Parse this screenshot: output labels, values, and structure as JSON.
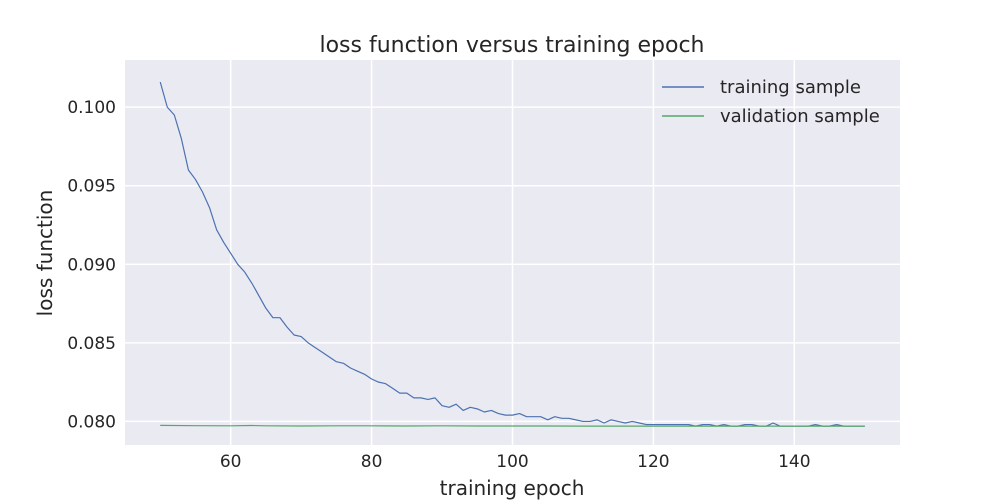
{
  "chart_data": {
    "type": "line",
    "title": "loss function versus training epoch",
    "xlabel": "training epoch",
    "ylabel": "loss function",
    "xlim": [
      45,
      155
    ],
    "ylim": [
      0.0785,
      0.103
    ],
    "xticks": [
      60,
      80,
      100,
      120,
      140
    ],
    "xtick_labels": [
      "60",
      "80",
      "100",
      "120",
      "140"
    ],
    "yticks": [
      0.08,
      0.085,
      0.09,
      0.095,
      0.1
    ],
    "ytick_labels": [
      "0.080",
      "0.085",
      "0.090",
      "0.095",
      "0.100"
    ],
    "grid": true,
    "legend_position": "upper-right",
    "series": [
      {
        "name": "training sample",
        "color": "#4c72b0",
        "x": [
          50,
          51,
          52,
          53,
          54,
          55,
          56,
          57,
          58,
          59,
          60,
          61,
          62,
          63,
          64,
          65,
          66,
          67,
          68,
          69,
          70,
          71,
          72,
          73,
          74,
          75,
          76,
          77,
          78,
          79,
          80,
          81,
          82,
          83,
          84,
          85,
          86,
          87,
          88,
          89,
          90,
          91,
          92,
          93,
          94,
          95,
          96,
          97,
          98,
          99,
          100,
          101,
          102,
          103,
          104,
          105,
          106,
          107,
          108,
          109,
          110,
          111,
          112,
          113,
          114,
          115,
          116,
          117,
          118,
          119,
          120,
          121,
          122,
          123,
          124,
          125,
          126,
          127,
          128,
          129,
          130,
          131,
          132,
          133,
          134,
          135,
          136,
          137,
          138,
          139,
          140,
          141,
          142,
          143,
          144,
          145,
          146,
          147,
          148,
          149,
          150
        ],
        "y": [
          0.1016,
          0.1,
          0.0995,
          0.098,
          0.096,
          0.0954,
          0.0946,
          0.0936,
          0.0922,
          0.0914,
          0.0907,
          0.09,
          0.0895,
          0.0888,
          0.088,
          0.0872,
          0.0866,
          0.0866,
          0.086,
          0.0855,
          0.0854,
          0.085,
          0.0847,
          0.0844,
          0.0841,
          0.0838,
          0.0837,
          0.0834,
          0.0832,
          0.083,
          0.0827,
          0.0825,
          0.0824,
          0.0821,
          0.0818,
          0.0818,
          0.0815,
          0.0815,
          0.0814,
          0.0815,
          0.081,
          0.0809,
          0.0811,
          0.0807,
          0.0809,
          0.0808,
          0.0806,
          0.0807,
          0.0805,
          0.0804,
          0.0804,
          0.0805,
          0.0803,
          0.0803,
          0.0803,
          0.0801,
          0.0803,
          0.0802,
          0.0802,
          0.0801,
          0.08,
          0.08,
          0.0801,
          0.0799,
          0.0801,
          0.08,
          0.0799,
          0.08,
          0.0799,
          0.0798,
          0.0798,
          0.0798,
          0.0798,
          0.0798,
          0.0798,
          0.0798,
          0.0797,
          0.0798,
          0.0798,
          0.0797,
          0.0798,
          0.0797,
          0.0797,
          0.0798,
          0.0798,
          0.0797,
          0.0797,
          0.0799,
          0.0797,
          0.0797,
          0.0797,
          0.0797,
          0.0797,
          0.0798,
          0.0797,
          0.0797,
          0.0798,
          0.0797,
          0.0797,
          0.0797,
          0.0797
        ]
      },
      {
        "name": "validation sample",
        "color": "#55a868",
        "x": [
          50,
          55,
          60,
          63,
          65,
          70,
          75,
          80,
          85,
          90,
          95,
          100,
          105,
          110,
          115,
          120,
          125,
          130,
          135,
          140,
          145,
          150
        ],
        "y": [
          0.07975,
          0.07973,
          0.07972,
          0.07974,
          0.07972,
          0.07971,
          0.07972,
          0.07972,
          0.07971,
          0.07972,
          0.07971,
          0.07971,
          0.07971,
          0.0797,
          0.0797,
          0.0797,
          0.0797,
          0.0797,
          0.0797,
          0.0797,
          0.0797,
          0.0797
        ]
      }
    ]
  }
}
